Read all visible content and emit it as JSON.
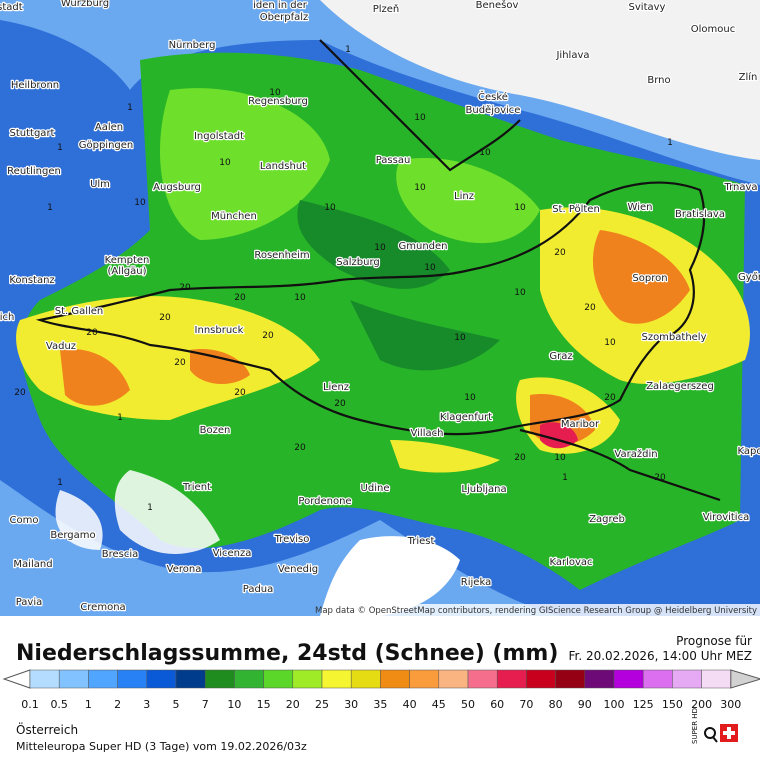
{
  "map": {
    "attribution": "Map data © OpenStreetMap contributors, rendering GIScience Research Group @ Heidelberg University",
    "cities": [
      "armstadt",
      "Würzburg",
      "iden in der",
      "Oberpfalz",
      "Plzeň",
      "Benešov",
      "Svitavy",
      "Olomouc",
      "Nürnberg",
      "Jihlava",
      "Heilbronn",
      "Brno",
      "Zlín",
      "Regensburg",
      "České",
      "Budějovice",
      "Aalen",
      "Stuttgart",
      "Ingolstadt",
      "Göppingen",
      "Landshut",
      "Reutlingen",
      "Passau",
      "Ulm",
      "Augsburg",
      "Trnava",
      "Linz",
      "St. Pölten",
      "Wien",
      "Bratislava",
      "München",
      "Gmunden",
      "Kempten",
      "(Allgäu)",
      "Rosenheim",
      "Salzburg",
      "Sopron",
      "Győr",
      "Konstanz",
      "St. Gallen",
      "Innsbruck",
      "Szombathely",
      "Vaduz",
      "ich",
      "Graz",
      "Zalaegerszeg",
      "Lienz",
      "Klagenfurt",
      "Maribor",
      "Bozen",
      "Villach",
      "Varaždin",
      "Kapo",
      "Udine",
      "Ljubljana",
      "Trient",
      "Pordenone",
      "Como",
      "Zagreb",
      "Virovitica",
      "Bergamo",
      "Treviso",
      "Triest",
      "Brescia",
      "Vicenza",
      "Karlovac",
      "Mailand",
      "Verona",
      "Venedig",
      "Rijeka",
      "Padua",
      "Pavia",
      "Cremona"
    ],
    "contour_labels": [
      "1",
      "1",
      "1",
      "1",
      "1",
      "10",
      "10",
      "10",
      "10",
      "10",
      "10",
      "10",
      "10",
      "10",
      "10",
      "10",
      "10",
      "10",
      "10",
      "20",
      "20",
      "20",
      "20",
      "20",
      "20",
      "20",
      "20",
      "20",
      "20",
      "20",
      "20",
      "20",
      "1",
      "1",
      "1",
      "1",
      "10",
      "10",
      "20",
      "20"
    ]
  },
  "footer": {
    "title": "Niederschlagssumme, 24std (Schnee) (mm)",
    "forecast_label": "Prognose für",
    "forecast_time": "Fr. 20.02.2026, 14:00 Uhr MEZ",
    "region": "Österreich",
    "model": "Mitteleuropa Super HD  (3 Tage)  vom  19.02.2026/03z"
  },
  "legend": {
    "levels": [
      0.1,
      0.5,
      1,
      2,
      3,
      5,
      7,
      10,
      15,
      20,
      25,
      30,
      35,
      40,
      45,
      50,
      60,
      70,
      80,
      90,
      100,
      125,
      150,
      200,
      300
    ],
    "colors": [
      "#b4dcff",
      "#82c3ff",
      "#50a5ff",
      "#2882f5",
      "#0a5ad7",
      "#003c8c",
      "#1e8c1e",
      "#32b432",
      "#5ad728",
      "#a0eb28",
      "#f5f532",
      "#e6dc14",
      "#f08c14",
      "#fa9b3c",
      "#fab482",
      "#f56e8c",
      "#e61e50",
      "#c8001e",
      "#960014",
      "#6e0a78",
      "#b400dc",
      "#dc6ef0",
      "#e6aaf5",
      "#f5dcf5",
      "#d2d2d2"
    ]
  }
}
